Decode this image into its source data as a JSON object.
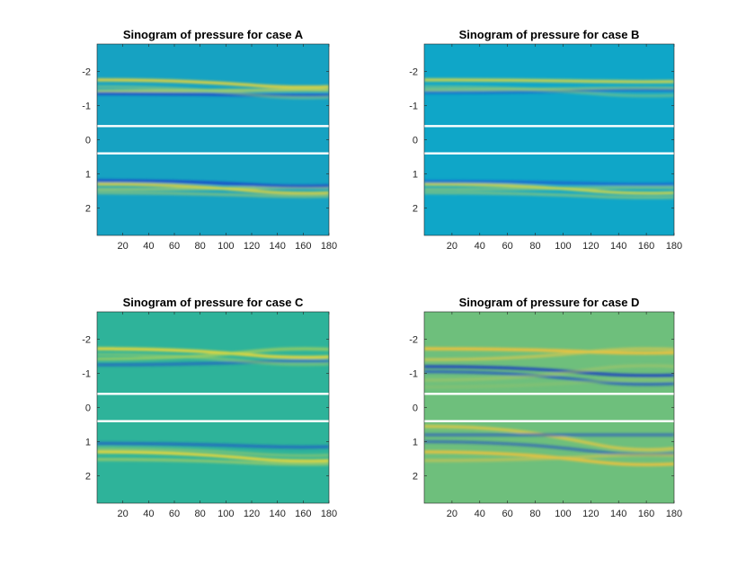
{
  "chart_data": [
    {
      "type": "heatmap",
      "title": "Sinogram of pressure for case A",
      "xlabel": "",
      "ylabel": "",
      "xlim": [
        0,
        180
      ],
      "ylim": [
        -2.8,
        2.8
      ],
      "y_direction": "reverse",
      "x_ticks": [
        20,
        40,
        60,
        80,
        100,
        120,
        140,
        160,
        180
      ],
      "y_ticks": [
        -2,
        -1,
        0,
        1,
        2
      ],
      "x_tick_labels": [
        "20",
        "40",
        "60",
        "80",
        "100",
        "120",
        "140",
        "160",
        "180"
      ],
      "y_tick_labels": [
        "-2",
        "-1",
        "0",
        "1",
        "2"
      ],
      "background_color": "#16a2c2",
      "white_lines_at": [
        -0.4,
        0.4
      ],
      "traces": [
        {
          "y_start": -1.75,
          "y_end": -1.55,
          "color": "#e8d43a",
          "intensity": 0.9
        },
        {
          "y_start": -1.42,
          "y_end": -1.45,
          "color": "#d8dc48",
          "intensity": 0.7
        },
        {
          "y_start": -1.35,
          "y_end": -1.3,
          "color": "#1a3ec8",
          "intensity": 0.75
        },
        {
          "y_start": -1.55,
          "y_end": -1.25,
          "color": "#a0d070",
          "intensity": 0.5
        },
        {
          "y_start": 1.3,
          "y_end": 1.55,
          "color": "#e8d43a",
          "intensity": 0.85
        },
        {
          "y_start": 1.45,
          "y_end": 1.4,
          "color": "#d0d84e",
          "intensity": 0.6
        },
        {
          "y_start": 1.2,
          "y_end": 1.35,
          "color": "#1a3ec8",
          "intensity": 0.75
        },
        {
          "y_start": 1.55,
          "y_end": 1.65,
          "color": "#b0d060",
          "intensity": 0.55
        }
      ]
    },
    {
      "type": "heatmap",
      "title": "Sinogram of pressure for case B",
      "xlabel": "",
      "ylabel": "",
      "xlim": [
        0,
        180
      ],
      "ylim": [
        -2.8,
        2.8
      ],
      "y_direction": "reverse",
      "x_ticks": [
        20,
        40,
        60,
        80,
        100,
        120,
        140,
        160,
        180
      ],
      "y_ticks": [
        -2,
        -1,
        0,
        1,
        2
      ],
      "x_tick_labels": [
        "20",
        "40",
        "60",
        "80",
        "100",
        "120",
        "140",
        "160",
        "180"
      ],
      "y_tick_labels": [
        "-2",
        "-1",
        "0",
        "1",
        "2"
      ],
      "background_color": "#0fa6c8",
      "white_lines_at": [
        -0.4,
        0.4
      ],
      "traces": [
        {
          "y_start": -1.75,
          "y_end": -1.7,
          "color": "#e0d840",
          "intensity": 0.85
        },
        {
          "y_start": -1.45,
          "y_end": -1.5,
          "color": "#c8d84e",
          "intensity": 0.6
        },
        {
          "y_start": -1.38,
          "y_end": -1.45,
          "color": "#1a4ed0",
          "intensity": 0.55
        },
        {
          "y_start": -1.55,
          "y_end": -1.3,
          "color": "#a8d068",
          "intensity": 0.45
        },
        {
          "y_start": 1.3,
          "y_end": 1.55,
          "color": "#e0d840",
          "intensity": 0.85
        },
        {
          "y_start": 1.45,
          "y_end": 1.4,
          "color": "#c0d458",
          "intensity": 0.55
        },
        {
          "y_start": 1.22,
          "y_end": 1.3,
          "color": "#1a4ed0",
          "intensity": 0.6
        },
        {
          "y_start": 1.55,
          "y_end": 1.68,
          "color": "#b0d060",
          "intensity": 0.55
        }
      ]
    },
    {
      "type": "heatmap",
      "title": "Sinogram of pressure for case C",
      "xlabel": "",
      "ylabel": "",
      "xlim": [
        0,
        180
      ],
      "ylim": [
        -2.8,
        2.8
      ],
      "y_direction": "reverse",
      "x_ticks": [
        20,
        40,
        60,
        80,
        100,
        120,
        140,
        160,
        180
      ],
      "y_ticks": [
        -2,
        -1,
        0,
        1,
        2
      ],
      "x_tick_labels": [
        "20",
        "40",
        "60",
        "80",
        "100",
        "120",
        "140",
        "160",
        "180"
      ],
      "y_tick_labels": [
        "-2",
        "-1",
        "0",
        "1",
        "2"
      ],
      "background_color": "#2eb39a",
      "white_lines_at": [
        -0.4,
        0.4
      ],
      "traces": [
        {
          "y_start": -1.72,
          "y_end": -1.48,
          "color": "#f0d838",
          "intensity": 0.9
        },
        {
          "y_start": -1.42,
          "y_end": -1.7,
          "color": "#c8d848",
          "intensity": 0.6
        },
        {
          "y_start": -1.25,
          "y_end": -1.35,
          "color": "#1a58c8",
          "intensity": 0.65
        },
        {
          "y_start": -1.55,
          "y_end": -1.28,
          "color": "#a8d060",
          "intensity": 0.5
        },
        {
          "y_start": 1.05,
          "y_end": 1.15,
          "color": "#1a58c8",
          "intensity": 0.7
        },
        {
          "y_start": 1.3,
          "y_end": 1.55,
          "color": "#f0d838",
          "intensity": 0.9
        },
        {
          "y_start": 1.52,
          "y_end": 1.65,
          "color": "#c0d458",
          "intensity": 0.6
        },
        {
          "y_start": 1.2,
          "y_end": 1.4,
          "color": "#b0d060",
          "intensity": 0.5
        }
      ]
    },
    {
      "type": "heatmap",
      "title": "Sinogram of pressure for case  D",
      "xlabel": "",
      "ylabel": "",
      "xlim": [
        0,
        180
      ],
      "ylim": [
        -2.8,
        2.8
      ],
      "y_direction": "reverse",
      "x_ticks": [
        20,
        40,
        60,
        80,
        100,
        120,
        140,
        160,
        180
      ],
      "y_ticks": [
        -2,
        -1,
        0,
        1,
        2
      ],
      "x_tick_labels": [
        "20",
        "40",
        "60",
        "80",
        "100",
        "120",
        "140",
        "160",
        "180"
      ],
      "y_tick_labels": [
        "-2",
        "-1",
        "0",
        "1",
        "2"
      ],
      "background_color": "#6ebf7c",
      "white_lines_at": [
        -0.4,
        0.4
      ],
      "traces": [
        {
          "y_start": -1.72,
          "y_end": -1.6,
          "color": "#f2c23a",
          "intensity": 0.9
        },
        {
          "y_start": -1.4,
          "y_end": -1.7,
          "color": "#e0c848",
          "intensity": 0.65
        },
        {
          "y_start": -1.2,
          "y_end": -0.95,
          "color": "#1a3ec0",
          "intensity": 0.85
        },
        {
          "y_start": -1.05,
          "y_end": -0.7,
          "color": "#1a4ec8",
          "intensity": 0.7
        },
        {
          "y_start": -0.8,
          "y_end": -1.2,
          "color": "#b8c860",
          "intensity": 0.45
        },
        {
          "y_start": -0.6,
          "y_end": -0.8,
          "color": "#9cc468",
          "intensity": 0.4
        },
        {
          "y_start": 0.55,
          "y_end": 1.2,
          "color": "#e8c840",
          "intensity": 0.75
        },
        {
          "y_start": 0.8,
          "y_end": 0.8,
          "color": "#1a4ec8",
          "intensity": 0.6
        },
        {
          "y_start": 1.0,
          "y_end": 1.35,
          "color": "#1a4ec8",
          "intensity": 0.6
        },
        {
          "y_start": 1.3,
          "y_end": 1.65,
          "color": "#f2c23a",
          "intensity": 0.85
        },
        {
          "y_start": 1.55,
          "y_end": 1.4,
          "color": "#d8c44c",
          "intensity": 0.6
        }
      ]
    }
  ]
}
